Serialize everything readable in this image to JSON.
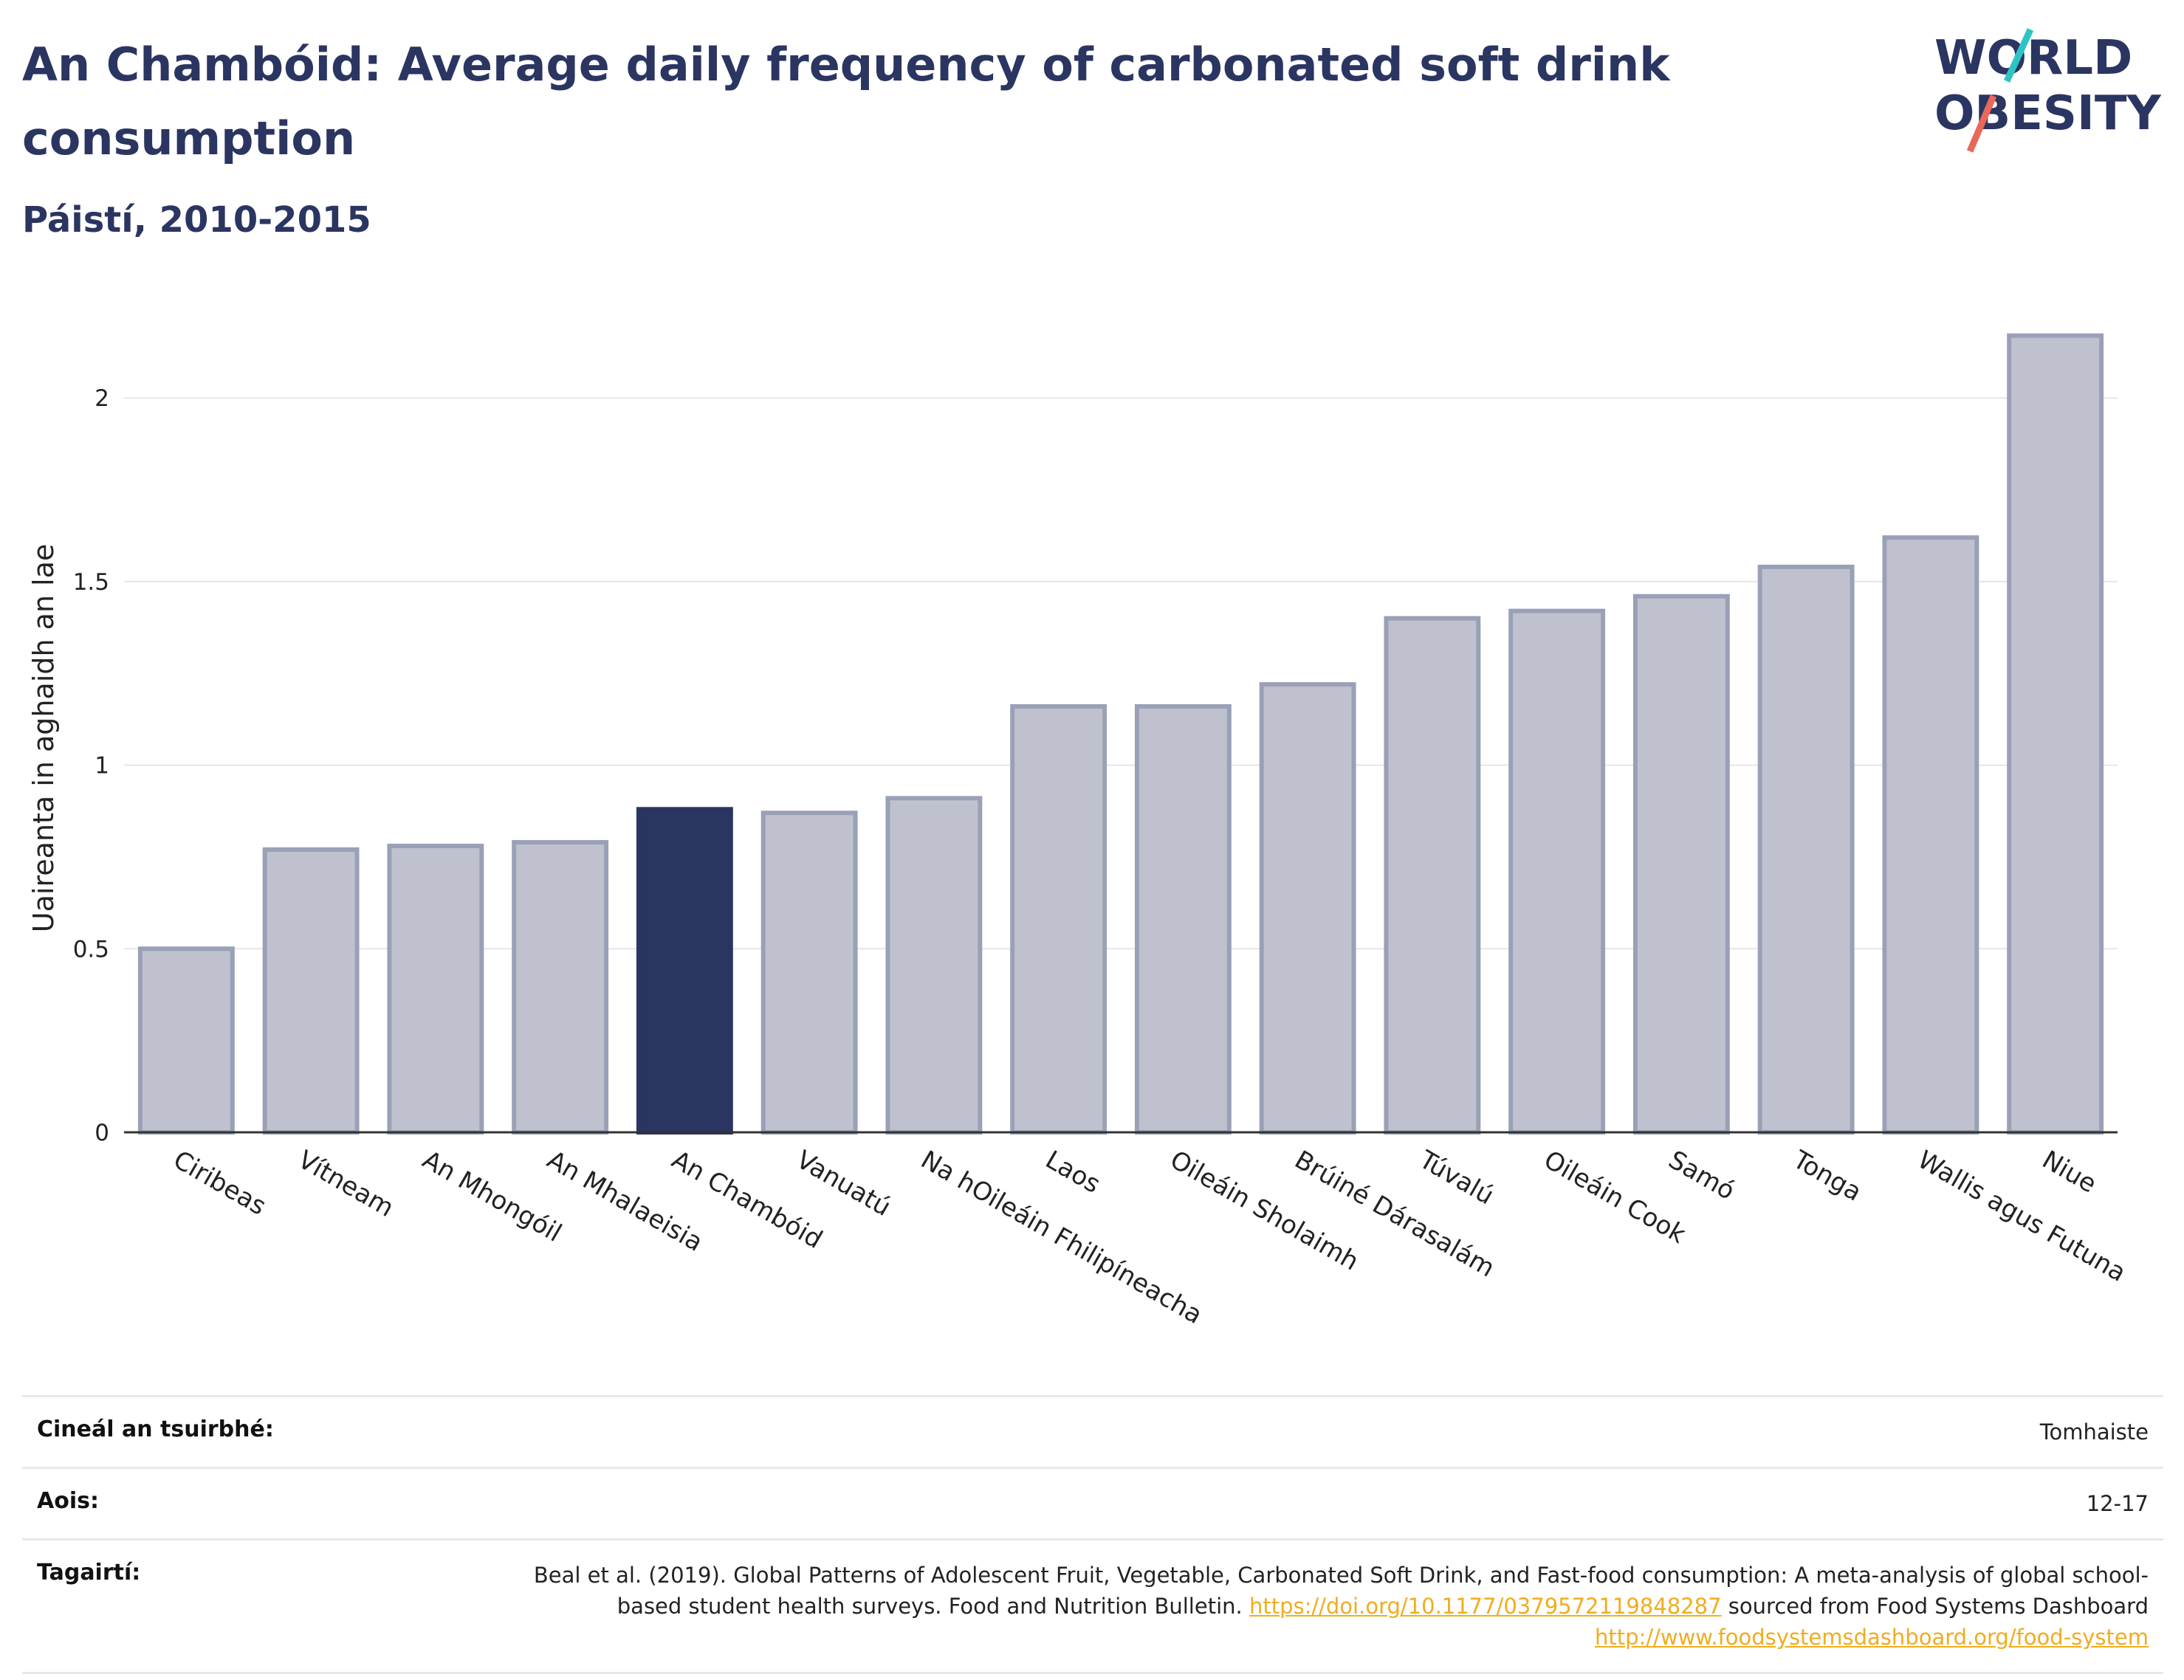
{
  "header": {
    "title": "An Chambóid: Average daily frequency of carbonated soft drink consumption",
    "subtitle": "Páistí, 2010-2015"
  },
  "logo": {
    "line1": "WORLD",
    "line2": "OBESITY",
    "colors": {
      "text": "#2b3561",
      "teal": "#2ec4c4",
      "coral": "#e8685a"
    }
  },
  "chart_data": {
    "type": "bar",
    "title": "An Chambóid: Average daily frequency of carbonated soft drink consumption",
    "subtitle": "Páistí, 2010-2015",
    "ylabel": "Uaireanta in aghaidh an lae",
    "xlabel": "",
    "ylim": [
      0,
      2.3
    ],
    "yticks": [
      0,
      0.5,
      1,
      1.5,
      2
    ],
    "ytick_labels": [
      "0",
      "0.5",
      "1",
      "1.5",
      "2"
    ],
    "grid": true,
    "categories": [
      "Ciribeas",
      "Vítneam",
      "An Mhongóil",
      "An Mhalaeisia",
      "An Chambóid",
      "Vanuatú",
      "Na hOileáin Fhilipíneacha",
      "Laos",
      "Oileáin Sholaimh",
      "Brúiné Dárasalám",
      "Túvalú",
      "Oileáin Cook",
      "Samó",
      "Tonga",
      "Wallis agus Futuna",
      "Niue"
    ],
    "values": [
      0.5,
      0.77,
      0.78,
      0.79,
      0.88,
      0.87,
      0.91,
      1.16,
      1.16,
      1.22,
      1.4,
      1.42,
      1.46,
      1.54,
      1.62,
      2.17
    ],
    "highlight": "An Chambóid",
    "colors": {
      "bar": "#bfc2ce",
      "bar_border": "#9aa0b6",
      "highlight": "#2b3561",
      "grid": "#e6e6ea",
      "axis": "#333333"
    }
  },
  "meta": [
    {
      "key": "Cineál an tsuirbhé:",
      "value": "Tomhaiste"
    },
    {
      "key": "Aois:",
      "value": "12-17"
    },
    {
      "key": "Tagairtí:",
      "ref_text": "Beal et al. (2019). Global Patterns of Adolescent Fruit, Vegetable, Carbonated Soft Drink, and Fast-food consumption: A meta-analysis of global school-based student health surveys. Food and Nutrition Bulletin.",
      "ref_link1": "https://doi.org/10.1177/0379572119848287",
      "ref_mid": "sourced from Food Systems Dashboard",
      "ref_link2": "http://www.foodsystemsdashboard.org/food-system"
    }
  ]
}
